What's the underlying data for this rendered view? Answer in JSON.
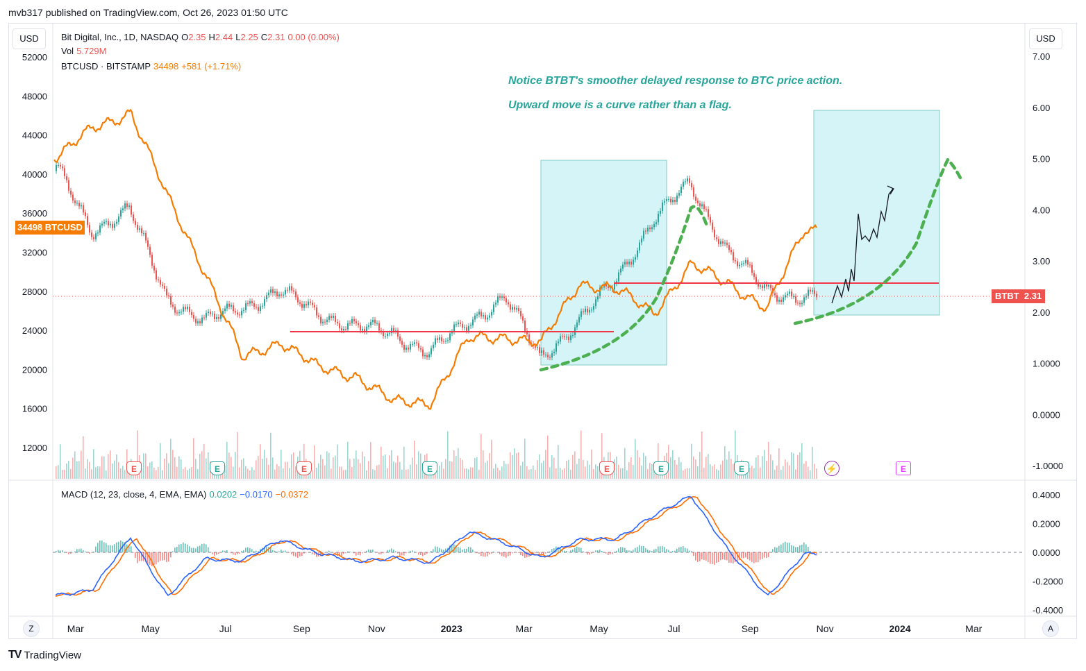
{
  "header": {
    "text": "mvb317 published on TradingView.com, Oct 26, 2023 01:50 UTC"
  },
  "currency_left": "USD",
  "currency_right": "USD",
  "legend": {
    "main_symbol": "Bit Digital, Inc., 1D, NASDAQ",
    "o_label": "O",
    "o_value": "2.35",
    "h_label": "H",
    "h_value": "2.44",
    "l_label": "L",
    "l_value": "2.25",
    "c_label": "C",
    "c_value": "2.31",
    "change": "0.00 (0.00%)",
    "vol_label": "Vol",
    "vol_value": "5.729M",
    "compare_symbol": "BTCUSD · BITSTAMP",
    "compare_value": "34498",
    "compare_change": "+581 (+1.71%)"
  },
  "macd": {
    "label": "MACD (12, 23, close, 4, EMA, EMA)",
    "hist": "0.0202",
    "macd": "−0.0170",
    "signal": "−0.0372"
  },
  "notes": [
    "Notice BTBT's smoother delayed response to BTC price action.",
    "Upward move is a curve rather than a flag."
  ],
  "price_tags": {
    "btc_value": "34498",
    "btc_label": "BTCUSD",
    "btbt_label": "BTBT",
    "btbt_value": "2.31"
  },
  "axes": {
    "left_ticks": [
      "52000",
      "48000",
      "44000",
      "40000",
      "36000",
      "32000",
      "28000",
      "24000",
      "20000",
      "16000",
      "12000"
    ],
    "right_ticks": [
      "7.00",
      "6.00",
      "5.00",
      "4.00",
      "3.00",
      "2.00",
      "1.0000",
      "0.0000",
      "-1.0000"
    ],
    "macd_ticks": [
      "0.4000",
      "0.2000",
      "0.0000",
      "-0.2000",
      "-0.4000"
    ],
    "x_ticks": [
      "Mar",
      "May",
      "Jul",
      "Sep",
      "Nov",
      "2023",
      "Mar",
      "May",
      "Jul",
      "Sep",
      "Nov",
      "2024",
      "Mar"
    ]
  },
  "events": [
    "E",
    "E",
    "E",
    "E",
    "E",
    "E",
    "E",
    "E"
  ],
  "buttons": {
    "z": "Z",
    "a": "A"
  },
  "brand": {
    "logo": "TV",
    "name": "TradingView"
  },
  "colors": {
    "btc_line": "#f57c00",
    "btbt_up": "#26a69a",
    "btbt_down": "#ef5350",
    "box": "#b2ebf2",
    "curve": "#4caf50",
    "level": "#f23645",
    "macd": "#2962ff",
    "signal": "#ff6d00"
  },
  "chart_data": [
    {
      "type": "line",
      "name": "BTCUSD",
      "x": [
        "2022-02",
        "2022-03",
        "2022-04",
        "2022-05",
        "2022-06",
        "2022-07",
        "2022-08",
        "2022-09",
        "2022-10",
        "2022-11",
        "2022-12",
        "2023-01",
        "2023-02",
        "2023-03",
        "2023-04",
        "2023-05",
        "2023-06",
        "2023-07",
        "2023-08",
        "2023-09",
        "2023-10"
      ],
      "y": [
        42000,
        44500,
        46500,
        37500,
        30000,
        21000,
        23000,
        20000,
        19500,
        16500,
        16800,
        23000,
        23500,
        22500,
        29000,
        28000,
        26000,
        30500,
        29000,
        26000,
        34498
      ],
      "ylim": [
        10000,
        54000
      ]
    },
    {
      "type": "candlestick",
      "name": "BTBT",
      "x": [
        "2022-02",
        "2022-03",
        "2022-04",
        "2022-05",
        "2022-06",
        "2022-07",
        "2022-08",
        "2022-09",
        "2022-10",
        "2022-11",
        "2022-12",
        "2023-01",
        "2023-02",
        "2023-03",
        "2023-04",
        "2023-05",
        "2023-06",
        "2023-07",
        "2023-08",
        "2023-09",
        "2023-10"
      ],
      "y": [
        4.8,
        3.6,
        4.0,
        2.3,
        1.8,
        2.1,
        2.4,
        2.0,
        1.7,
        1.6,
        1.2,
        1.8,
        2.3,
        1.1,
        1.8,
        2.6,
        3.8,
        4.5,
        3.2,
        2.4,
        2.31
      ],
      "ylim": [
        -1.3,
        7.3
      ]
    },
    {
      "type": "line",
      "name": "MACD",
      "x": [
        "2022-02",
        "2022-03",
        "2022-04",
        "2022-05",
        "2022-06",
        "2022-07",
        "2022-08",
        "2022-09",
        "2022-10",
        "2022-11",
        "2022-12",
        "2023-01",
        "2023-02",
        "2023-03",
        "2023-04",
        "2023-05",
        "2023-06",
        "2023-07",
        "2023-08",
        "2023-09",
        "2023-10"
      ],
      "y": [
        -0.3,
        -0.25,
        0.1,
        -0.3,
        -0.05,
        -0.05,
        0.08,
        0.0,
        -0.07,
        -0.03,
        -0.08,
        0.15,
        0.05,
        -0.03,
        0.08,
        0.1,
        0.25,
        0.4,
        0.0,
        -0.3,
        -0.017
      ],
      "ylim": [
        -0.45,
        0.45
      ]
    }
  ]
}
